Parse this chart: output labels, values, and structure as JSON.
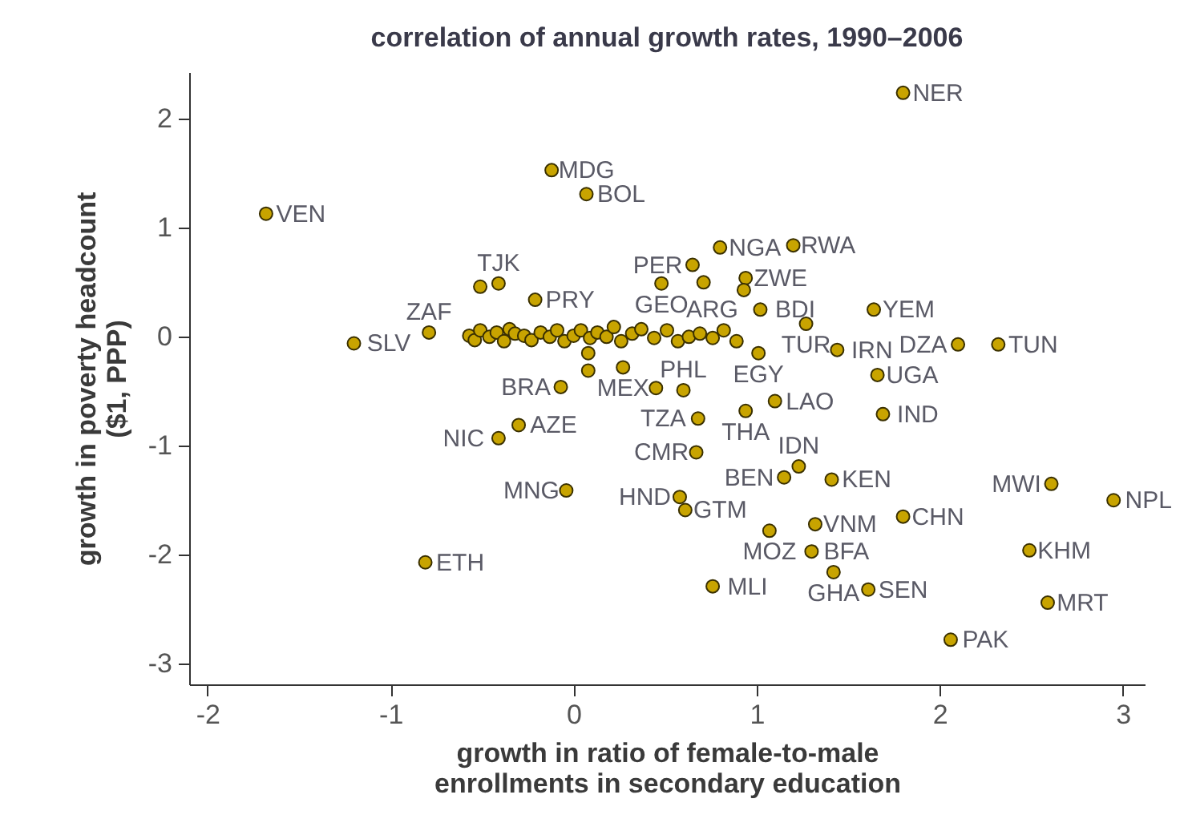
{
  "chart_data": {
    "type": "scatter",
    "title": "correlation of annual growth rates, 1990–2006",
    "xlabel": "growth in ratio of female-to-male\nenrollments in secondary education",
    "ylabel": "growth in poverty headcount\n($1, PPP)",
    "xlim": [
      -2.1,
      3.12
    ],
    "ylim": [
      -3.19,
      2.43
    ],
    "xticks": [
      -2,
      -1,
      0,
      1,
      2,
      3
    ],
    "yticks": [
      -3,
      -2,
      -1,
      0,
      1,
      2
    ],
    "grid": false,
    "marker": "circle",
    "series": [
      {
        "color": "#c8a400",
        "x": [
          1.8,
          -0.12,
          0.07,
          -1.68,
          0.8,
          1.2,
          0.65,
          0.48,
          0.71,
          0.94,
          0.93,
          1.02,
          1.27,
          1.64,
          2.1,
          2.32,
          1.44,
          1.01,
          1.66,
          1.69,
          1.1,
          0.94,
          0.68,
          0.6,
          -0.07,
          0.27,
          0.67,
          1.23,
          1.15,
          1.41,
          0.58,
          0.61,
          -0.04,
          1.07,
          1.32,
          1.8,
          1.3,
          1.42,
          1.61,
          0.76,
          2.06,
          2.61,
          2.95,
          2.49,
          2.59,
          -0.81,
          -0.3,
          -0.41,
          -1.2,
          -0.79,
          -0.41,
          -0.51,
          -0.21,
          -0.57,
          -0.54,
          -0.51,
          -0.46,
          -0.42,
          -0.38,
          -0.35,
          -0.32,
          -0.27,
          -0.23,
          -0.18,
          -0.13,
          -0.09,
          -0.05,
          0,
          0.04,
          0.09,
          0.13,
          0.18,
          0.22,
          0.26,
          0.32,
          0.37,
          0.44,
          0.51,
          0.57,
          0.63,
          0.69,
          0.76,
          0.82,
          0.89,
          0.08,
          0.08,
          0.45
        ],
        "values": [
          2.24,
          1.53,
          1.31,
          1.13,
          0.82,
          0.84,
          0.66,
          0.49,
          0.5,
          0.54,
          0.43,
          0.25,
          0.12,
          0.25,
          -0.07,
          -0.07,
          -0.12,
          -0.15,
          -0.35,
          -0.71,
          -0.59,
          -0.68,
          -0.75,
          -0.49,
          -0.46,
          -0.28,
          -1.06,
          -1.19,
          -1.29,
          -1.31,
          -1.47,
          -1.59,
          -1.41,
          -1.78,
          -1.72,
          -1.65,
          -1.97,
          -2.16,
          -2.32,
          -2.29,
          -2.78,
          -1.35,
          -1.5,
          -1.96,
          -2.44,
          -2.07,
          -0.81,
          -0.93,
          -0.06,
          0.04,
          0.49,
          0.46,
          0.34,
          0.01,
          -0.03,
          0.06,
          0,
          0.04,
          -0.04,
          0.07,
          0.03,
          0.01,
          -0.03,
          0.04,
          0,
          0.06,
          -0.04,
          0.01,
          0.06,
          -0.01,
          0.04,
          0,
          0.09,
          -0.04,
          0.03,
          0.07,
          -0.01,
          0.06,
          -0.04,
          0,
          0.03,
          -0.01,
          0.06,
          -0.04,
          -0.15,
          -0.31,
          -0.47
        ],
        "value_labels": [
          "NER",
          "MDG",
          "BOL",
          "VEN",
          "NGA",
          "RWA",
          "PER",
          "GEO",
          null,
          "ZWE",
          "ARG",
          "BDI",
          "TUR",
          "YEM",
          "DZA",
          "TUN",
          "IRN",
          "EGY",
          "UGA",
          "IND",
          "LAO",
          "THA",
          "TZA",
          "PHL",
          "BRA",
          "MEX",
          "CMR",
          "IDN",
          "BEN",
          "KEN",
          "HND",
          "GTM",
          "MNG",
          "MOZ",
          "VNM",
          "CHN",
          "BFA",
          "GHA",
          "SEN",
          "MLI",
          "PAK",
          "MWI",
          "NPL",
          "KHM",
          "MRT",
          "ETH",
          "AZE",
          "NIC",
          "SLV",
          "ZAF",
          "TJK",
          null,
          "PRY",
          null,
          null,
          null,
          null,
          null,
          null,
          null,
          null,
          null,
          null,
          null,
          null,
          null,
          null,
          null,
          null,
          null,
          null,
          null,
          null,
          null,
          null,
          null,
          null,
          null,
          null,
          null,
          null,
          null,
          null,
          null,
          null,
          null,
          null
        ]
      }
    ]
  }
}
